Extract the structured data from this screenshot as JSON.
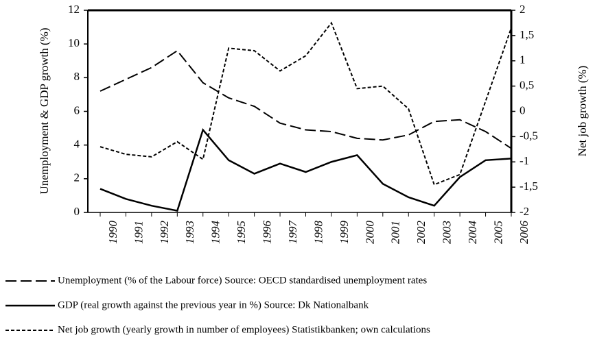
{
  "chart_data": {
    "type": "line",
    "y_label": "Unemployment & GDP growth (%)",
    "y2_label": "Net job growth (%)",
    "categories": [
      "1990",
      "1991",
      "1992",
      "1993",
      "1994",
      "1995",
      "1996",
      "1997",
      "1998",
      "1999",
      "2000",
      "2001",
      "2002",
      "2003",
      "2004",
      "2005",
      "2006"
    ],
    "ylim": [
      0,
      12
    ],
    "yticks": [
      0,
      2,
      4,
      6,
      8,
      10,
      12
    ],
    "y2lim": [
      -2,
      2
    ],
    "y2ticks": [
      -2,
      {
        "value": -1.5,
        "label": "-1,5"
      },
      -1,
      {
        "value": -0.5,
        "label": "-0,5"
      },
      0,
      {
        "value": 0.5,
        "label": "0,5"
      },
      1,
      {
        "value": 1.5,
        "label": "1,5"
      },
      2
    ],
    "series": [
      {
        "name": "Unemployment  (% of the Labour force) Source: OECD standardised unemployment rates",
        "color": "#000000",
        "dash": "long",
        "width": 2,
        "values": [
          7.2,
          7.9,
          8.6,
          9.6,
          7.7,
          6.8,
          6.3,
          5.3,
          4.9,
          4.8,
          4.4,
          4.3,
          4.6,
          5.4,
          5.5,
          4.8,
          3.8
        ]
      },
      {
        "name": "GDP (real growth against the previous year in %) Source: Dk Nationalbank",
        "color": "#000000",
        "dash": "solid",
        "width": 2.5,
        "values": [
          1.4,
          0.8,
          0.4,
          0.1,
          4.9,
          3.1,
          2.3,
          2.9,
          2.4,
          3.0,
          3.4,
          1.7,
          0.9,
          0.4,
          2.1,
          3.1,
          3.2
        ]
      },
      {
        "name": "Net job growth (yearly growth in number of employees) Statistikbanken; own calculations",
        "color": "#000000",
        "dash": "short",
        "width": 2,
        "axis": "y2",
        "values": [
          -0.7,
          -0.85,
          -0.9,
          -0.6,
          -0.95,
          1.25,
          1.2,
          0.8,
          1.1,
          1.75,
          0.45,
          0.5,
          0.05,
          -1.45,
          -1.25,
          0.2,
          1.65
        ]
      }
    ]
  }
}
